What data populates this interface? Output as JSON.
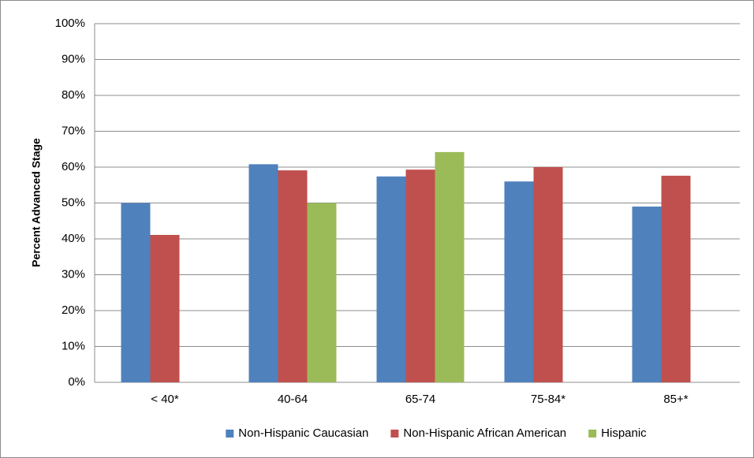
{
  "chart_data": {
    "type": "bar",
    "y_label": "Percent Advanced Stage",
    "categories": [
      "< 40*",
      "40-64",
      "65-74",
      "75-84*",
      "85+*"
    ],
    "series": [
      {
        "name": "Non-Hispanic Caucasian",
        "color": "#4f81bd",
        "values": [
          50,
          60.8,
          57.4,
          56,
          49
        ]
      },
      {
        "name": "Non-Hispanic African American",
        "color": "#c0504d",
        "values": [
          41.1,
          59.1,
          59.3,
          60,
          57.6
        ]
      },
      {
        "name": "Hispanic",
        "color": "#9bbb59",
        "values": [
          null,
          50,
          64.2,
          null,
          null
        ]
      }
    ],
    "ylim": [
      0,
      100
    ],
    "yticks": [
      {
        "value": 0,
        "label": "0%"
      },
      {
        "value": 10,
        "label": "10%"
      },
      {
        "value": 20,
        "label": "20%"
      },
      {
        "value": 30,
        "label": "30%"
      },
      {
        "value": 40,
        "label": "40%"
      },
      {
        "value": 50,
        "label": "50%"
      },
      {
        "value": 60,
        "label": "60%"
      },
      {
        "value": 70,
        "label": "70%"
      },
      {
        "value": 80,
        "label": "80%"
      },
      {
        "value": 90,
        "label": "90%"
      },
      {
        "value": 100,
        "label": "100%"
      }
    ],
    "grid": true
  }
}
